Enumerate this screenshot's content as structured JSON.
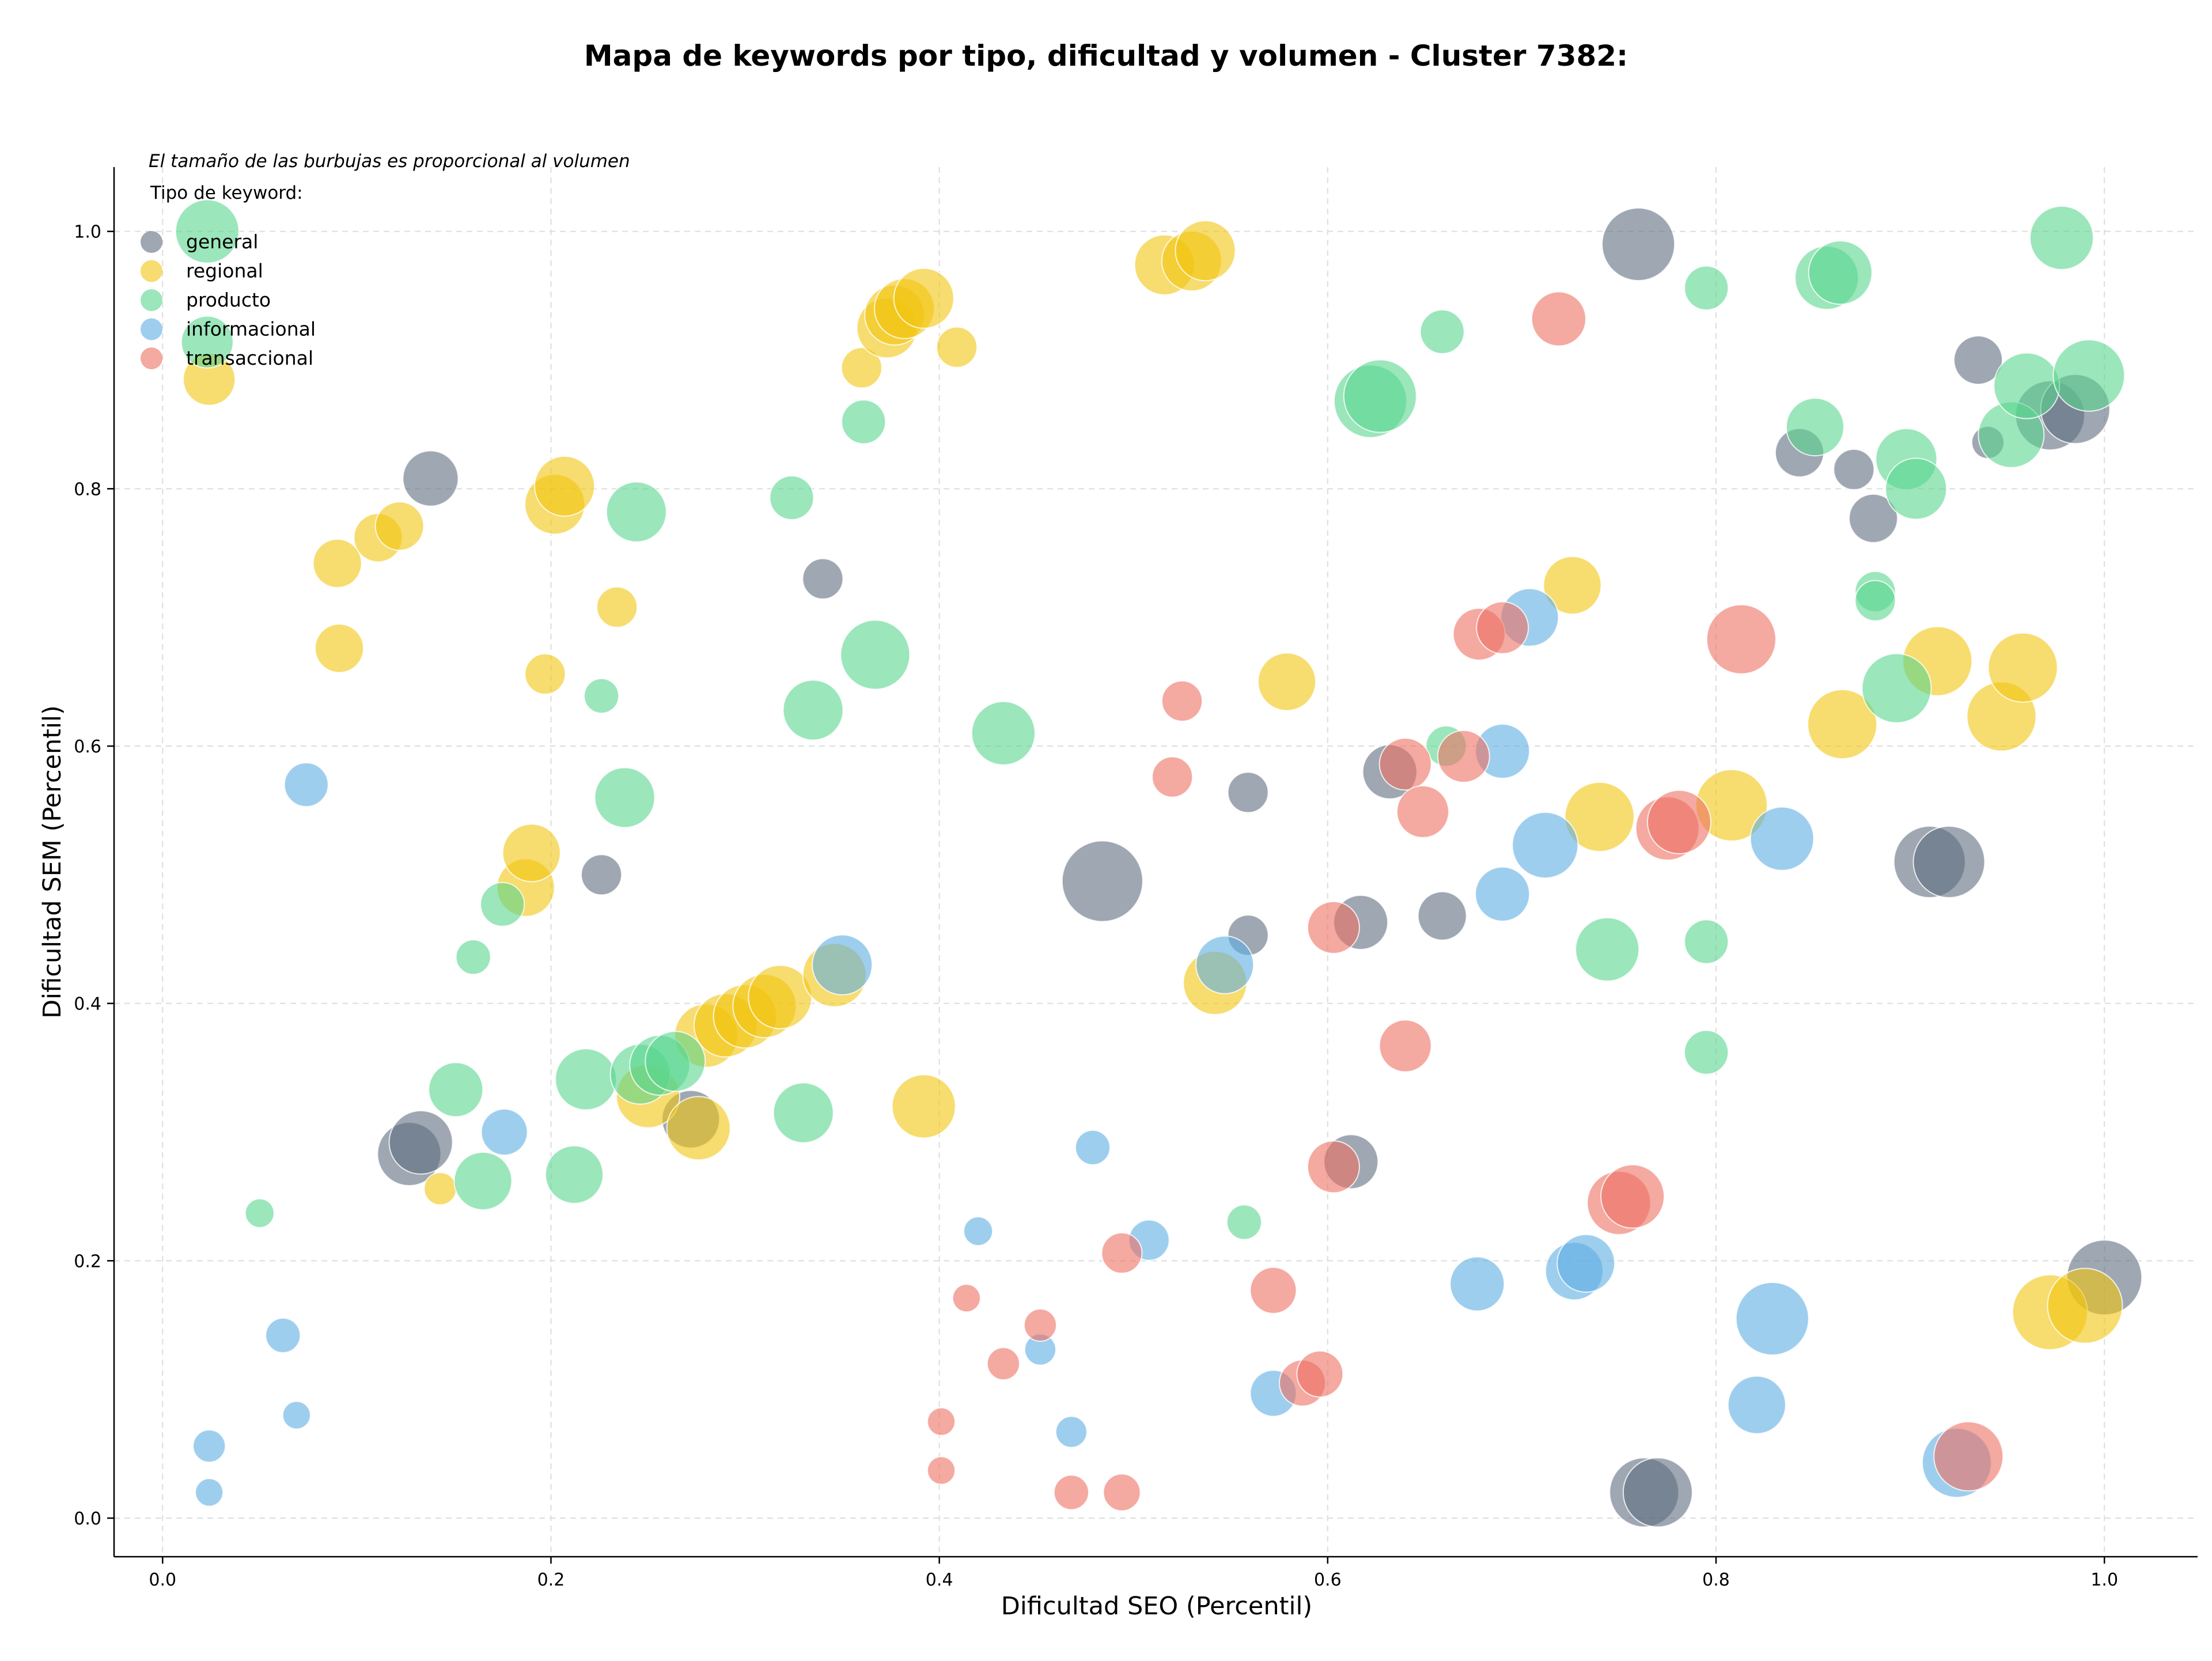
{
  "chart_data": {
    "type": "scatter",
    "title": "Mapa de keywords por tipo, dificultad y volumen - Cluster 7382:",
    "xlabel": "Dificultad SEO (Percentil)",
    "ylabel": "Dificultad SEM (Percentil)",
    "xlim": [
      -0.025,
      1.048
    ],
    "ylim": [
      -0.03,
      1.05
    ],
    "xticks": [
      "0.0",
      "0.2",
      "0.4",
      "0.6",
      "0.8",
      "1.0"
    ],
    "yticks": [
      "0.0",
      "0.2",
      "0.4",
      "0.6",
      "0.8",
      "1.0"
    ],
    "grid": true,
    "legend_placement": "top-left",
    "annotation": "El tamaño de las burbujas es proporcional al volumen",
    "legend_title": "Tipo de keyword:",
    "series": [
      {
        "name": "general",
        "color": "#5d6d7e",
        "points": [
          [
            0.76,
            0.99,
            63
          ],
          [
            0.138,
            0.808,
            48
          ],
          [
            0.34,
            0.73,
            35
          ],
          [
            0.226,
            0.5,
            35
          ],
          [
            0.127,
            0.283,
            55
          ],
          [
            0.133,
            0.292,
            55
          ],
          [
            0.272,
            0.31,
            50
          ],
          [
            0.484,
            0.495,
            70
          ],
          [
            0.559,
            0.564,
            35
          ],
          [
            0.559,
            0.453,
            35
          ],
          [
            0.617,
            0.463,
            47
          ],
          [
            0.632,
            0.58,
            47
          ],
          [
            0.659,
            0.468,
            42
          ],
          [
            0.612,
            0.277,
            47
          ],
          [
            0.843,
            0.828,
            42
          ],
          [
            0.871,
            0.815,
            35
          ],
          [
            0.881,
            0.777,
            42
          ],
          [
            0.935,
            0.9,
            42
          ],
          [
            0.94,
            0.836,
            28
          ],
          [
            0.972,
            0.857,
            60
          ],
          [
            0.985,
            0.862,
            60
          ],
          [
            0.91,
            0.51,
            62
          ],
          [
            0.92,
            0.51,
            62
          ],
          [
            0.763,
            0.02,
            60
          ],
          [
            0.77,
            0.02,
            60
          ],
          [
            1.0,
            0.187,
            65
          ]
        ]
      },
      {
        "name": "regional",
        "color": "#f1c40f",
        "points": [
          [
            0.024,
            0.885,
            45
          ],
          [
            0.09,
            0.742,
            42
          ],
          [
            0.091,
            0.676,
            42
          ],
          [
            0.111,
            0.762,
            42
          ],
          [
            0.122,
            0.771,
            42
          ],
          [
            0.197,
            0.656,
            35
          ],
          [
            0.202,
            0.788,
            52
          ],
          [
            0.207,
            0.802,
            52
          ],
          [
            0.234,
            0.708,
            35
          ],
          [
            0.187,
            0.49,
            50
          ],
          [
            0.19,
            0.517,
            50
          ],
          [
            0.143,
            0.256,
            28
          ],
          [
            0.25,
            0.328,
            55
          ],
          [
            0.276,
            0.303,
            55
          ],
          [
            0.28,
            0.375,
            55
          ],
          [
            0.29,
            0.383,
            55
          ],
          [
            0.3,
            0.39,
            55
          ],
          [
            0.31,
            0.398,
            55
          ],
          [
            0.318,
            0.405,
            55
          ],
          [
            0.346,
            0.422,
            55
          ],
          [
            0.36,
            0.894,
            35
          ],
          [
            0.373,
            0.925,
            52
          ],
          [
            0.377,
            0.935,
            52
          ],
          [
            0.382,
            0.94,
            52
          ],
          [
            0.392,
            0.948,
            52
          ],
          [
            0.409,
            0.91,
            35
          ],
          [
            0.392,
            0.32,
            55
          ],
          [
            0.516,
            0.974,
            52
          ],
          [
            0.53,
            0.977,
            52
          ],
          [
            0.537,
            0.985,
            52
          ],
          [
            0.542,
            0.416,
            55
          ],
          [
            0.579,
            0.65,
            50
          ],
          [
            0.726,
            0.725,
            50
          ],
          [
            0.74,
            0.545,
            60
          ],
          [
            0.808,
            0.554,
            62
          ],
          [
            0.865,
            0.617,
            60
          ],
          [
            0.914,
            0.666,
            60
          ],
          [
            0.947,
            0.623,
            60
          ],
          [
            0.958,
            0.661,
            60
          ],
          [
            0.972,
            0.16,
            65
          ],
          [
            0.99,
            0.165,
            65
          ]
        ]
      },
      {
        "name": "producto",
        "color": "#58d68d",
        "points": [
          [
            0.023,
            1.0,
            55
          ],
          [
            0.023,
            0.914,
            45
          ],
          [
            0.05,
            0.237,
            25
          ],
          [
            0.151,
            0.333,
            47
          ],
          [
            0.16,
            0.436,
            30
          ],
          [
            0.165,
            0.262,
            50
          ],
          [
            0.175,
            0.477,
            38
          ],
          [
            0.212,
            0.267,
            50
          ],
          [
            0.218,
            0.341,
            53
          ],
          [
            0.226,
            0.639,
            30
          ],
          [
            0.238,
            0.56,
            52
          ],
          [
            0.244,
            0.782,
            52
          ],
          [
            0.246,
            0.345,
            52
          ],
          [
            0.256,
            0.352,
            52
          ],
          [
            0.264,
            0.355,
            52
          ],
          [
            0.324,
            0.793,
            38
          ],
          [
            0.33,
            0.315,
            52
          ],
          [
            0.335,
            0.628,
            52
          ],
          [
            0.361,
            0.852,
            38
          ],
          [
            0.367,
            0.671,
            60
          ],
          [
            0.433,
            0.61,
            55
          ],
          [
            0.557,
            0.23,
            30
          ],
          [
            0.622,
            0.868,
            63
          ],
          [
            0.627,
            0.872,
            63
          ],
          [
            0.659,
            0.922,
            38
          ],
          [
            0.661,
            0.6,
            35
          ],
          [
            0.744,
            0.442,
            55
          ],
          [
            0.795,
            0.956,
            38
          ],
          [
            0.795,
            0.448,
            38
          ],
          [
            0.795,
            0.362,
            38
          ],
          [
            0.851,
            0.848,
            50
          ],
          [
            0.857,
            0.964,
            55
          ],
          [
            0.864,
            0.968,
            55
          ],
          [
            0.882,
            0.72,
            35
          ],
          [
            0.882,
            0.713,
            35
          ],
          [
            0.893,
            0.645,
            60
          ],
          [
            0.898,
            0.823,
            53
          ],
          [
            0.903,
            0.8,
            53
          ],
          [
            0.952,
            0.842,
            57
          ],
          [
            0.96,
            0.88,
            57
          ],
          [
            0.978,
            0.995,
            55
          ],
          [
            0.992,
            0.888,
            62
          ]
        ]
      },
      {
        "name": "informacional",
        "color": "#5dade2",
        "points": [
          [
            0.024,
            0.056,
            28
          ],
          [
            0.024,
            0.02,
            24
          ],
          [
            0.062,
            0.142,
            30
          ],
          [
            0.069,
            0.08,
            24
          ],
          [
            0.074,
            0.57,
            38
          ],
          [
            0.176,
            0.3,
            40
          ],
          [
            0.35,
            0.43,
            52
          ],
          [
            0.42,
            0.223,
            25
          ],
          [
            0.452,
            0.131,
            27
          ],
          [
            0.468,
            0.067,
            27
          ],
          [
            0.479,
            0.288,
            30
          ],
          [
            0.508,
            0.216,
            35
          ],
          [
            0.547,
            0.43,
            50
          ],
          [
            0.572,
            0.097,
            40
          ],
          [
            0.677,
            0.182,
            47
          ],
          [
            0.69,
            0.485,
            47
          ],
          [
            0.69,
            0.596,
            47
          ],
          [
            0.704,
            0.7,
            50
          ],
          [
            0.712,
            0.523,
            57
          ],
          [
            0.727,
            0.192,
            50
          ],
          [
            0.733,
            0.198,
            50
          ],
          [
            0.821,
            0.088,
            50
          ],
          [
            0.829,
            0.155,
            63
          ],
          [
            0.834,
            0.528,
            55
          ],
          [
            0.924,
            0.043,
            60
          ]
        ]
      },
      {
        "name": "transaccional",
        "color": "#ec7063",
        "points": [
          [
            0.401,
            0.075,
            24
          ],
          [
            0.401,
            0.037,
            24
          ],
          [
            0.414,
            0.171,
            24
          ],
          [
            0.433,
            0.12,
            28
          ],
          [
            0.452,
            0.15,
            28
          ],
          [
            0.468,
            0.02,
            30
          ],
          [
            0.494,
            0.02,
            32
          ],
          [
            0.494,
            0.206,
            35
          ],
          [
            0.52,
            0.576,
            35
          ],
          [
            0.525,
            0.635,
            35
          ],
          [
            0.572,
            0.177,
            40
          ],
          [
            0.587,
            0.105,
            40
          ],
          [
            0.596,
            0.112,
            40
          ],
          [
            0.603,
            0.459,
            45
          ],
          [
            0.603,
            0.273,
            45
          ],
          [
            0.64,
            0.586,
            45
          ],
          [
            0.64,
            0.367,
            45
          ],
          [
            0.649,
            0.549,
            45
          ],
          [
            0.67,
            0.592,
            45
          ],
          [
            0.678,
            0.687,
            45
          ],
          [
            0.69,
            0.692,
            45
          ],
          [
            0.719,
            0.932,
            47
          ],
          [
            0.75,
            0.245,
            55
          ],
          [
            0.757,
            0.25,
            55
          ],
          [
            0.775,
            0.536,
            55
          ],
          [
            0.781,
            0.541,
            55
          ],
          [
            0.813,
            0.683,
            60
          ],
          [
            0.93,
            0.048,
            60
          ]
        ]
      }
    ]
  }
}
